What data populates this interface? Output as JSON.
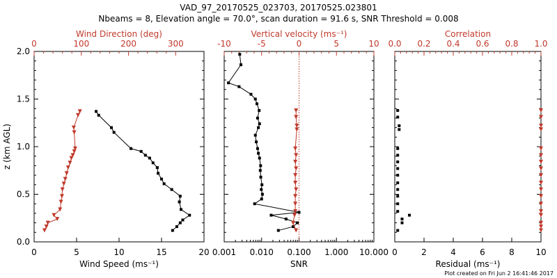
{
  "colors": {
    "ink": "#000000",
    "accent": "#c0392b"
  },
  "header": {
    "title": "VAD_97_20170525_023703, 20170525.023801",
    "subtitle": "Nbeams = 8, Elevation angle = 70.0°, scan duration = 91.6 s, SNR Threshold = 0.008"
  },
  "footer": {
    "created": "Plot created on Fri Jun  2 16:41:46 2017"
  },
  "chart_data": [
    {
      "type": "line",
      "ylabel": "z (km AGL)",
      "ylim": [
        0,
        2
      ],
      "y_ticks": [
        "0.0",
        "0.5",
        "1.0",
        "1.5",
        "2.0"
      ],
      "xlabel": "Wind Speed (ms⁻¹)",
      "xlim": [
        0,
        20
      ],
      "x_ticks": [
        "0",
        "5",
        "10",
        "15",
        "20"
      ],
      "top_axis": {
        "label": "Wind Direction (deg)",
        "xlim": [
          0,
          360
        ],
        "x_ticks": [
          "0",
          "100",
          "200",
          "300"
        ]
      },
      "series": [
        {
          "marker": "square",
          "color": "#000000",
          "axis": "bottom",
          "points": [
            [
              16.3,
              0.12
            ],
            [
              16.8,
              0.16
            ],
            [
              17.2,
              0.2
            ],
            [
              17.5,
              0.23
            ],
            [
              18.3,
              0.28
            ],
            [
              17.3,
              0.34
            ],
            [
              17.1,
              0.42
            ],
            [
              17.2,
              0.48
            ],
            [
              16.2,
              0.55
            ],
            [
              15.3,
              0.61
            ],
            [
              15.0,
              0.66
            ],
            [
              14.6,
              0.72
            ],
            [
              14.5,
              0.78
            ],
            [
              14.0,
              0.83
            ],
            [
              13.6,
              0.88
            ],
            [
              13.1,
              0.91
            ],
            [
              12.6,
              0.95
            ],
            [
              11.4,
              0.98
            ],
            [
              9.4,
              1.15
            ],
            [
              9.1,
              1.2
            ],
            [
              7.6,
              1.33
            ],
            [
              7.3,
              1.37
            ]
          ]
        },
        {
          "marker": "triangle-down",
          "color": "#c0392b",
          "axis": "top",
          "points": [
            [
              22,
              0.12
            ],
            [
              26,
              0.16
            ],
            [
              29,
              0.2
            ],
            [
              49,
              0.24
            ],
            [
              42,
              0.28
            ],
            [
              55,
              0.34
            ],
            [
              57,
              0.42
            ],
            [
              59,
              0.48
            ],
            [
              60,
              0.55
            ],
            [
              63,
              0.61
            ],
            [
              66,
              0.66
            ],
            [
              69,
              0.72
            ],
            [
              72,
              0.78
            ],
            [
              76,
              0.83
            ],
            [
              79,
              0.88
            ],
            [
              82,
              0.91
            ],
            [
              85,
              0.95
            ],
            [
              87,
              0.98
            ],
            [
              85,
              1.15
            ],
            [
              84,
              1.2
            ],
            [
              93,
              1.33
            ],
            [
              97,
              1.37
            ]
          ]
        }
      ]
    },
    {
      "type": "line",
      "xlabel": "SNR",
      "x_scale": "log",
      "xlim": [
        0.001,
        10.0
      ],
      "x_ticks": [
        "0.001",
        "0.010",
        "0.100",
        "1.000",
        "10.000"
      ],
      "top_axis": {
        "label": "Vertical velocity (ms⁻¹)",
        "xlim": [
          -10,
          10
        ],
        "x_ticks": [
          "-10",
          "-5",
          "0",
          "5",
          "10"
        ]
      },
      "ylim": [
        0,
        2
      ],
      "series": [
        {
          "marker": "square",
          "color": "#000000",
          "axis": "bottom",
          "points": [
            [
              0.028,
              0.12
            ],
            [
              0.07,
              0.16
            ],
            [
              0.09,
              0.2
            ],
            [
              0.045,
              0.24
            ],
            [
              0.018,
              0.28
            ],
            [
              0.1,
              0.31
            ],
            [
              0.0065,
              0.4
            ],
            [
              0.01,
              0.45
            ],
            [
              0.0105,
              0.5
            ],
            [
              0.0098,
              0.55
            ],
            [
              0.0102,
              0.6
            ],
            [
              0.0095,
              0.68
            ],
            [
              0.0092,
              0.75
            ],
            [
              0.0094,
              0.8
            ],
            [
              0.0088,
              0.88
            ],
            [
              0.0082,
              0.93
            ],
            [
              0.0078,
              0.98
            ],
            [
              0.0072,
              1.05
            ],
            [
              0.0068,
              1.12
            ],
            [
              0.0082,
              1.2
            ],
            [
              0.0088,
              1.24
            ],
            [
              0.0078,
              1.3
            ],
            [
              0.0086,
              1.38
            ],
            [
              0.0075,
              1.45
            ],
            [
              0.0068,
              1.5
            ],
            [
              0.0052,
              1.55
            ],
            [
              0.0025,
              1.63
            ],
            [
              0.0013,
              1.67
            ],
            [
              0.0028,
              1.86
            ],
            [
              0.0026,
              1.97
            ]
          ]
        },
        {
          "marker": "triangle-down",
          "color": "#c0392b",
          "axis": "top",
          "points": [
            [
              -0.4,
              0.12
            ],
            [
              -0.8,
              0.2
            ],
            [
              -0.6,
              0.28
            ],
            [
              -0.5,
              0.32
            ],
            [
              -0.5,
              0.4
            ],
            [
              -0.5,
              0.48
            ],
            [
              -0.4,
              0.55
            ],
            [
              -0.5,
              0.62
            ],
            [
              -0.5,
              0.7
            ],
            [
              -0.4,
              0.77
            ],
            [
              -0.5,
              0.84
            ],
            [
              -0.4,
              0.91
            ],
            [
              -0.5,
              0.98
            ],
            [
              -0.3,
              1.18
            ],
            [
              -0.3,
              1.22
            ],
            [
              -0.4,
              1.31
            ],
            [
              -0.4,
              1.38
            ]
          ]
        }
      ]
    },
    {
      "type": "scatter",
      "xlabel": "Residual (ms⁻¹)",
      "xlim": [
        0,
        10
      ],
      "x_ticks": [
        "0",
        "2",
        "4",
        "6",
        "8",
        "10"
      ],
      "top_axis": {
        "label": "Correlation",
        "xlim": [
          0.0,
          1.0
        ],
        "x_ticks": [
          "0.0",
          "0.2",
          "0.4",
          "0.6",
          "0.8",
          "1.0"
        ]
      },
      "ylim": [
        0,
        2
      ],
      "series": [
        {
          "marker": "square",
          "color": "#000000",
          "axis": "bottom",
          "points": [
            [
              0.2,
              0.12
            ],
            [
              0.5,
              0.2
            ],
            [
              0.5,
              0.24
            ],
            [
              1.0,
              0.28
            ],
            [
              0.2,
              0.32
            ],
            [
              0.2,
              0.4
            ],
            [
              0.2,
              0.48
            ],
            [
              0.2,
              0.55
            ],
            [
              0.2,
              0.62
            ],
            [
              0.2,
              0.7
            ],
            [
              0.2,
              0.77
            ],
            [
              0.2,
              0.84
            ],
            [
              0.2,
              0.91
            ],
            [
              0.2,
              0.98
            ],
            [
              0.3,
              1.18
            ],
            [
              0.3,
              1.22
            ],
            [
              0.2,
              1.31
            ],
            [
              0.2,
              1.38
            ]
          ]
        },
        {
          "marker": "triangle-down",
          "color": "#c0392b",
          "axis": "top",
          "points": [
            [
              1.0,
              0.12
            ],
            [
              1.0,
              0.16
            ],
            [
              1.0,
              0.2
            ],
            [
              1.0,
              0.28
            ],
            [
              1.0,
              0.32
            ],
            [
              1.0,
              0.4
            ],
            [
              1.0,
              0.48
            ],
            [
              1.0,
              0.55
            ],
            [
              1.0,
              0.62
            ],
            [
              1.0,
              0.7
            ],
            [
              1.0,
              0.77
            ],
            [
              1.0,
              0.84
            ],
            [
              1.0,
              0.91
            ],
            [
              1.0,
              0.98
            ],
            [
              1.0,
              1.18
            ],
            [
              1.0,
              1.22
            ],
            [
              1.0,
              1.31
            ],
            [
              1.0,
              1.38
            ]
          ]
        }
      ]
    }
  ]
}
